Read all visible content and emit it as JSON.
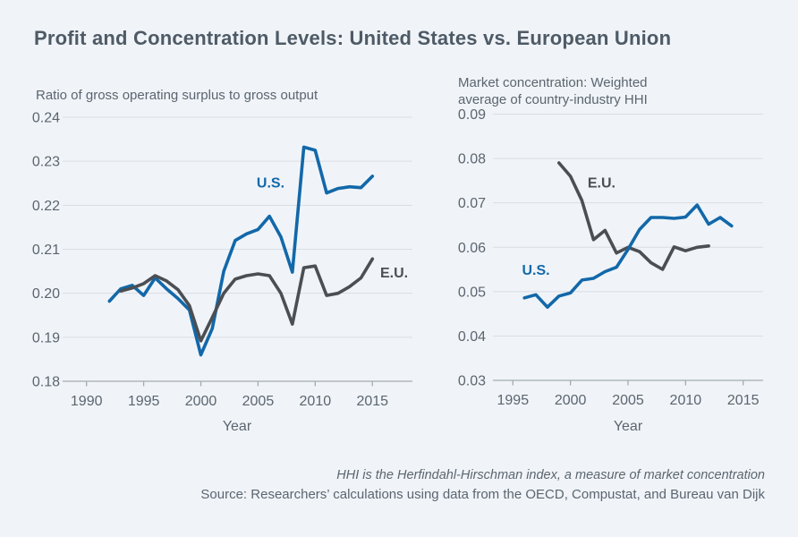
{
  "page": {
    "title": "Profit and Concentration Levels: United States vs. European Union",
    "footnote": "HHI is the Herfindahl-Hirschman index, a measure of market concentration",
    "source": "Source: Researchers’ calculations using data from the OECD, Compustat, and Bureau van Dijk"
  },
  "colors": {
    "background": "#f0f4f8",
    "grid": "#d9dee4",
    "axis": "#a2aab2",
    "text": "#5b656f",
    "title_text": "#4e5a66",
    "us": "#1268a9",
    "eu": "#4b4e52"
  },
  "chart_data": [
    {
      "type": "line",
      "title": "Ratio of gross operating surplus to gross output",
      "xlabel": "Year",
      "ylim": [
        0.18,
        0.24
      ],
      "yticks": [
        0.18,
        0.19,
        0.2,
        0.21,
        0.22,
        0.23,
        0.24
      ],
      "xticks": [
        1990,
        1995,
        2000,
        2005,
        2010,
        2015
      ],
      "grid": true,
      "series": [
        {
          "id": "us",
          "name": "U.S.",
          "color": "#1268a9",
          "label": {
            "year": 2006.1,
            "value": 0.2253
          },
          "x": [
            1992,
            1993,
            1994,
            1995,
            1996,
            1997,
            1998,
            1999,
            2000,
            2001,
            2002,
            2003,
            2004,
            2005,
            2006,
            2007,
            2008,
            2009,
            2010,
            2011,
            2012,
            2013,
            2014,
            2015
          ],
          "values": [
            0.1982,
            0.201,
            0.2018,
            0.1995,
            0.2035,
            0.201,
            0.1988,
            0.1962,
            0.186,
            0.192,
            0.205,
            0.212,
            0.2135,
            0.2145,
            0.2175,
            0.2128,
            0.2048,
            0.2332,
            0.2325,
            0.2228,
            0.2238,
            0.2242,
            0.224,
            0.2266
          ]
        },
        {
          "id": "eu",
          "name": "E.U.",
          "color": "#4b4e52",
          "label": {
            "year": 2016.9,
            "value": 0.2048
          },
          "x": [
            1993,
            1994,
            1995,
            1996,
            1997,
            1998,
            1999,
            2000,
            2001,
            2002,
            2003,
            2004,
            2005,
            2006,
            2007,
            2008,
            2009,
            2010,
            2011,
            2012,
            2013,
            2014,
            2015
          ],
          "values": [
            0.2005,
            0.2012,
            0.2022,
            0.204,
            0.2028,
            0.2008,
            0.1972,
            0.1892,
            0.1945,
            0.2,
            0.2032,
            0.204,
            0.2044,
            0.204,
            0.2,
            0.193,
            0.2058,
            0.2062,
            0.1995,
            0.2,
            0.2015,
            0.2035,
            0.2078
          ]
        }
      ]
    },
    {
      "type": "line",
      "title": "Market concentration: Weighted average of country-industry HHI",
      "xlabel": "Year",
      "ylim": [
        0.03,
        0.09
      ],
      "yticks": [
        0.03,
        0.04,
        0.05,
        0.06,
        0.07,
        0.08,
        0.09
      ],
      "xticks": [
        1995,
        2000,
        2005,
        2010,
        2015
      ],
      "grid": true,
      "series": [
        {
          "id": "eu",
          "name": "E.U.",
          "color": "#4b4e52",
          "label": {
            "year": 2002.7,
            "value": 0.0747
          },
          "x": [
            1999,
            2000,
            2001,
            2002,
            2003,
            2004,
            2005,
            2006,
            2007,
            2008,
            2009,
            2010,
            2011,
            2012
          ],
          "values": [
            0.079,
            0.076,
            0.0705,
            0.0617,
            0.0638,
            0.0587,
            0.06,
            0.059,
            0.0565,
            0.055,
            0.0601,
            0.0592,
            0.06,
            0.0603
          ]
        },
        {
          "id": "us",
          "name": "U.S.",
          "color": "#1268a9",
          "label": {
            "year": 1997.0,
            "value": 0.055
          },
          "x": [
            1996,
            1997,
            1998,
            1999,
            2000,
            2001,
            2002,
            2003,
            2004,
            2005,
            2006,
            2007,
            2008,
            2009,
            2010,
            2011,
            2012,
            2013,
            2014
          ],
          "values": [
            0.0486,
            0.0493,
            0.0465,
            0.049,
            0.0497,
            0.0526,
            0.053,
            0.0545,
            0.0555,
            0.0595,
            0.064,
            0.0667,
            0.0667,
            0.0665,
            0.0668,
            0.0695,
            0.0652,
            0.0667,
            0.0648
          ]
        }
      ]
    }
  ]
}
